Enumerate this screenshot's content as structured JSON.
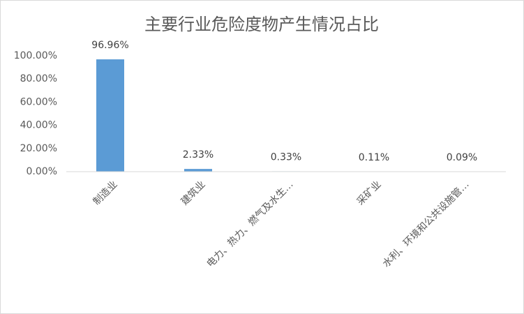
{
  "chart_data": {
    "type": "bar",
    "title": "主要行业危险度物产生情况占比",
    "categories": [
      "制造业",
      "建筑业",
      "电力、热力、燃气及水生…",
      "采矿业",
      "水利、环境和公共设施管…"
    ],
    "values": [
      96.96,
      2.33,
      0.33,
      0.11,
      0.09
    ],
    "value_labels": [
      "96.96%",
      "2.33%",
      "0.33%",
      "0.11%",
      "0.09%"
    ],
    "color": "#5b9bd5",
    "ylim": [
      0,
      100
    ],
    "yticks": [
      {
        "value": 0,
        "label": "0.00%"
      },
      {
        "value": 20,
        "label": "20.00%"
      },
      {
        "value": 40,
        "label": "40.00%"
      },
      {
        "value": 60,
        "label": "60.00%"
      },
      {
        "value": 80,
        "label": "80.00%"
      },
      {
        "value": 100,
        "label": "100.00%"
      }
    ],
    "grid": false
  }
}
